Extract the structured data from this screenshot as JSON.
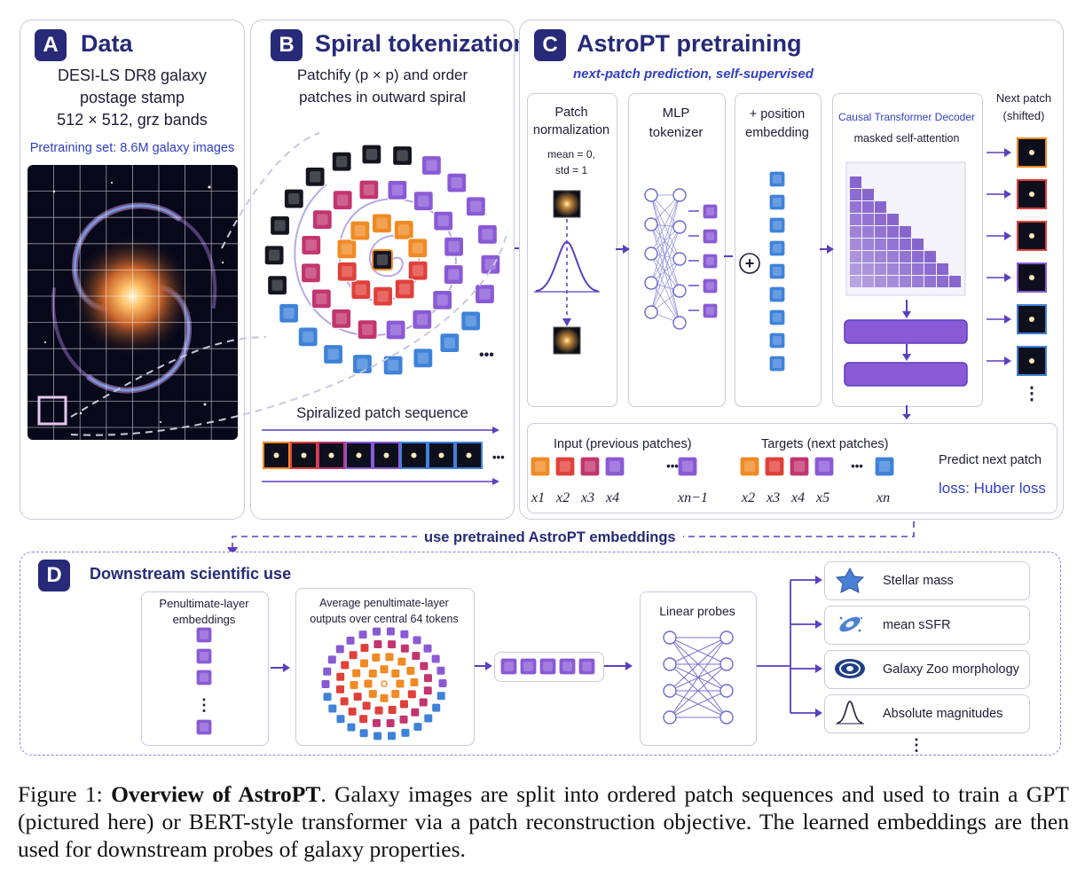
{
  "panel_a": {
    "letter": "A",
    "title": "Data",
    "desc_line1": "DESI-LS DR8 galaxy",
    "desc_line2": "postage stamp",
    "desc_line3": "512 × 512, grz bands",
    "pretrain_set": "Pretraining set: 8.6M galaxy images"
  },
  "panel_b": {
    "letter": "B",
    "title": "Spiral tokenization",
    "desc_line1": "Patchify (p × p) and order",
    "desc_line2": "patches in outward spiral",
    "sequence_label": "Spiralized patch sequence",
    "ellipsis": "•••"
  },
  "panel_c": {
    "letter": "C",
    "title": "AstroPT pretraining",
    "subtitle": "next-patch prediction, self-supervised",
    "norm_title_line1": "Patch",
    "norm_title_line2": "normalization",
    "norm_mean": "mean = 0,",
    "norm_std": "std = 1",
    "mlp_line1": "MLP",
    "mlp_line2": "tokenizer",
    "pos_line1": "+ position",
    "pos_line2": "embedding",
    "plus_symbol": "+",
    "decoder_title": "Causal Transformer Decoder",
    "decoder_subtitle": "masked self-attention",
    "next_patch_line1": "Next patch",
    "next_patch_line2": "(shifted)",
    "input_label": "Input (previous patches)",
    "targets_label": "Targets (next patches)",
    "input_ellipsis": "•••",
    "target_ellipsis": "•••",
    "input_subscripts": [
      "x1",
      "x2",
      "x3",
      "x4",
      "xn−1"
    ],
    "target_subscripts": [
      "x2",
      "x3",
      "x4",
      "x5",
      "xn"
    ],
    "predict_label": "Predict next patch",
    "loss_label": "loss: Huber loss"
  },
  "link_label": "use pretrained AstroPT embeddings",
  "panel_d": {
    "letter": "D",
    "title": "Downstream scientific use",
    "emb_line1": "Penultimate-layer",
    "emb_line2": "embeddings",
    "avg_line1": "Average penultimate-layer",
    "avg_line2": "outputs over central 64 tokens",
    "probes_label": "Linear probes",
    "outputs": [
      {
        "label": "Stellar mass",
        "icon": "star-icon"
      },
      {
        "label": "mean sSFR",
        "icon": "star-forming-galaxy-icon"
      },
      {
        "label": "Galaxy Zoo morphology",
        "icon": "spiral-galaxy-icon"
      },
      {
        "label": "Absolute magnitudes",
        "icon": "gaussian-curve-icon"
      }
    ]
  },
  "caption": {
    "prefix": "Figure 1: ",
    "bold": "Overview of AstroPT",
    "text": ". Galaxy images are split into ordered patch sequences and used to train a GPT (pictured here) or BERT-style transformer via a patch reconstruction objective. The learned embeddings are then used for downstream probes of galaxy properties."
  },
  "colors": {
    "navy": "#262a78",
    "purple": "#6a3fc1",
    "orange": "#f08a24",
    "red": "#e0403a",
    "magenta": "#c2356f",
    "violet": "#8a5ad6",
    "blue": "#3f82d9",
    "black_patch": "#151520"
  }
}
